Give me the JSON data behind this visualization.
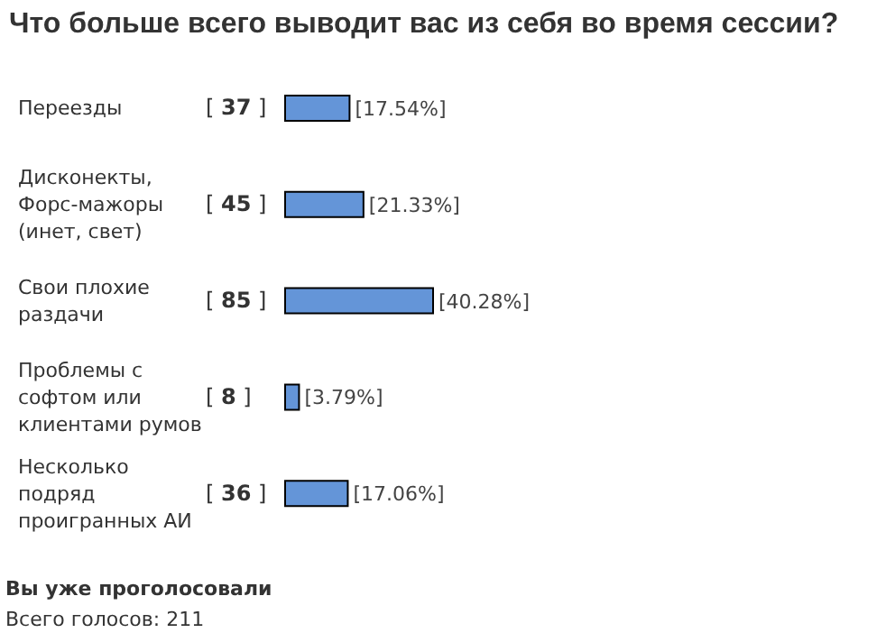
{
  "chart_data": {
    "type": "bar",
    "orientation": "horizontal",
    "title": "Что больше всего выводит вас из себя во время сессии?",
    "categories": [
      "Переезды",
      "Дисконекты, Форс-мажоры (инет, свет)",
      "Свои плохие раздачи",
      "Проблемы с софтом или клиентами румов",
      "Несколько подряд проигранных АИ"
    ],
    "values": [
      17.54,
      21.33,
      40.28,
      3.79,
      17.06
    ],
    "color": "#6495d8",
    "value_labels": [
      "[17.54%]",
      "[21.33%]",
      "[40.28%]",
      "[3.79%]",
      "[17.06%]"
    ],
    "annotations": [
      "[ 37 ]",
      "[ 45 ]",
      "[ 85 ]",
      "[ 8 ]",
      "[ 36 ]",
      "Вы уже проголосовали",
      "Всего голосов: 211"
    ]
  }
}
